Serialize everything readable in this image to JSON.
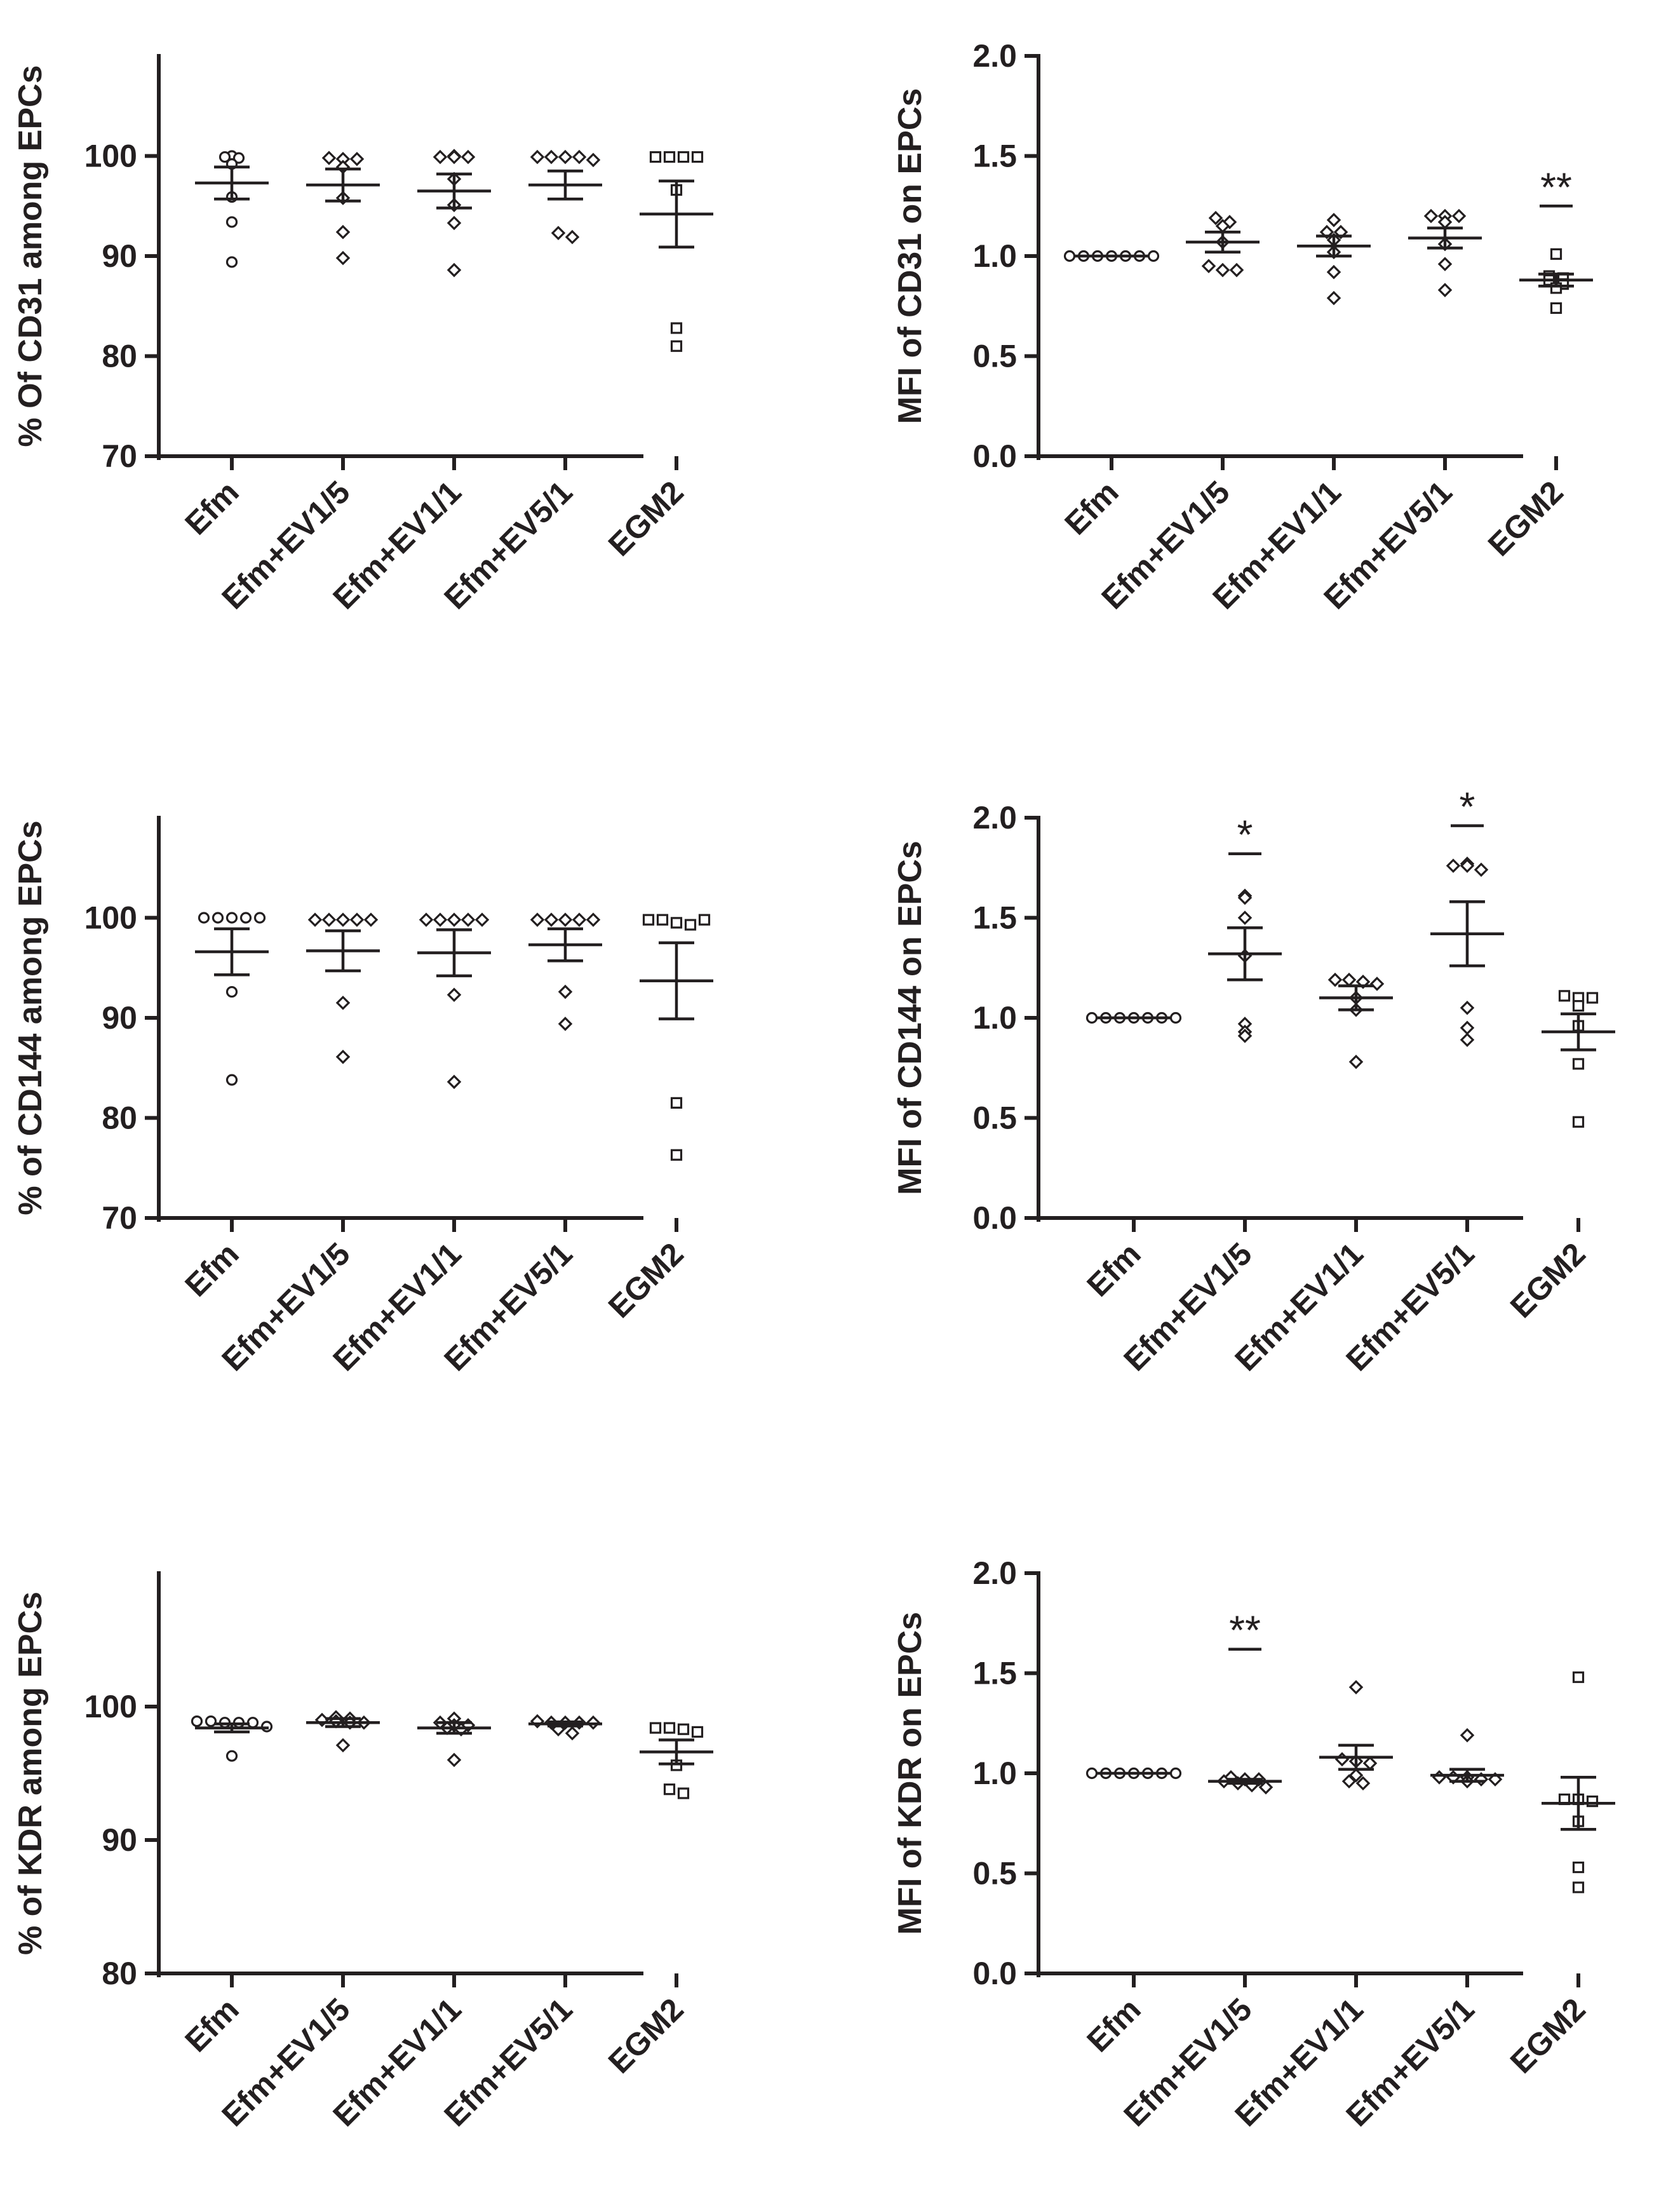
{
  "figure": {
    "panels": [
      {
        "id": "cd31-percent",
        "ylabel": "% Of CD31 among  EPCs"
      },
      {
        "id": "cd31-mfi",
        "ylabel": "MFI of CD31 on EPCs"
      },
      {
        "id": "cd144-percent",
        "ylabel": "% of CD144 among EPCs"
      },
      {
        "id": "cd144-mfi",
        "ylabel": "MFI of CD144 on EPCs"
      },
      {
        "id": "kdr-percent",
        "ylabel": "% of KDR among EPCs"
      },
      {
        "id": "kdr-mfi",
        "ylabel": "MFI of KDR on EPCs"
      }
    ]
  },
  "chart_data": [
    {
      "type": "scatter",
      "title": "",
      "xlabel": "",
      "ylabel": "% Of CD31 among  EPCs",
      "ylim": [
        70,
        110
      ],
      "ytick_values": [
        70,
        80,
        90,
        100
      ],
      "ytick_labels": [
        "70",
        "80",
        "90",
        "100"
      ],
      "categories": [
        "Efm",
        "Efm+EV1/5",
        "Efm+EV1/1",
        "Efm+EV5/1",
        "EGM2"
      ],
      "markers": [
        "circle",
        "diamond",
        "diamond",
        "diamond",
        "square"
      ],
      "points": [
        [
          100,
          99.9,
          99.8,
          99.2,
          95.9,
          93.4,
          89.4
        ],
        [
          99.8,
          99.7,
          99.7,
          98.9,
          95.8,
          92.4,
          89.8
        ],
        [
          100,
          99.9,
          99.9,
          99.9,
          97.7,
          95.1,
          93.3,
          88.6
        ],
        [
          99.9,
          99.9,
          99.9,
          99.9,
          99.6,
          92.3,
          91.9
        ],
        [
          99.9,
          99.9,
          99.9,
          99.9,
          96.6,
          82.8,
          81.0
        ]
      ],
      "mean": [
        97.3,
        97.1,
        96.5,
        97.1,
        94.2
      ],
      "sem": [
        1.6,
        1.6,
        1.7,
        1.4,
        3.3
      ],
      "significance": []
    },
    {
      "type": "scatter",
      "title": "",
      "xlabel": "",
      "ylabel": "MFI of CD31 on EPCs",
      "ylim": [
        0,
        2.0
      ],
      "ytick_values": [
        0,
        0.5,
        1.0,
        1.5,
        2.0
      ],
      "ytick_labels": [
        "0.0",
        "0.5",
        "1.0",
        "1.5",
        "2.0"
      ],
      "categories": [
        "Efm",
        "Efm+EV1/5",
        "Efm+EV1/1",
        "Efm+EV5/1",
        "EGM2"
      ],
      "markers": [
        "circle",
        "diamond",
        "diamond",
        "diamond",
        "square"
      ],
      "points": [
        [
          1.0,
          1.0,
          1.0,
          1.0,
          1.0,
          1.0,
          1.0
        ],
        [
          1.19,
          1.17,
          1.15,
          1.07,
          0.95,
          0.93,
          0.93
        ],
        [
          1.18,
          1.12,
          1.12,
          1.08,
          1.02,
          0.92,
          0.79
        ],
        [
          1.2,
          1.2,
          1.2,
          1.17,
          1.06,
          0.96,
          0.83
        ],
        [
          1.01,
          0.9,
          0.89,
          0.88,
          0.86,
          0.84,
          0.74
        ]
      ],
      "mean": [
        1.0,
        1.07,
        1.05,
        1.09,
        0.88
      ],
      "sem": [
        0.0,
        0.05,
        0.05,
        0.05,
        0.03
      ],
      "significance": [
        {
          "category": "EGM2",
          "label": "**",
          "y": 1.25
        }
      ]
    },
    {
      "type": "scatter",
      "title": "",
      "xlabel": "",
      "ylabel": "% of CD144 among EPCs",
      "ylim": [
        70,
        110
      ],
      "ytick_values": [
        70,
        80,
        90,
        100
      ],
      "ytick_labels": [
        "70",
        "80",
        "90",
        "100"
      ],
      "categories": [
        "Efm",
        "Efm+EV1/5",
        "Efm+EV1/1",
        "Efm+EV5/1",
        "EGM2"
      ],
      "markers": [
        "circle",
        "diamond",
        "diamond",
        "diamond",
        "square"
      ],
      "points": [
        [
          100,
          100,
          100,
          100,
          100,
          92.6,
          83.8
        ],
        [
          99.8,
          99.8,
          99.8,
          99.8,
          99.8,
          91.5,
          86.1
        ],
        [
          99.8,
          99.8,
          99.8,
          99.8,
          99.8,
          92.3,
          83.6
        ],
        [
          99.8,
          99.8,
          99.8,
          99.8,
          99.8,
          92.6,
          89.4
        ],
        [
          99.8,
          99.8,
          99.5,
          99.3,
          99.8,
          81.5,
          76.3
        ]
      ],
      "mean": [
        96.6,
        96.7,
        96.5,
        97.3,
        93.7
      ],
      "sem": [
        2.3,
        2.0,
        2.3,
        1.6,
        3.8
      ],
      "significance": []
    },
    {
      "type": "scatter",
      "title": "",
      "xlabel": "",
      "ylabel": "MFI of CD144 on EPCs",
      "ylim": [
        0,
        2.0
      ],
      "ytick_values": [
        0,
        0.5,
        1.0,
        1.5,
        2.0
      ],
      "ytick_labels": [
        "0.0",
        "0.5",
        "1.0",
        "1.5",
        "2.0"
      ],
      "categories": [
        "Efm",
        "Efm+EV1/5",
        "Efm+EV1/1",
        "Efm+EV5/1",
        "EGM2"
      ],
      "markers": [
        "circle",
        "diamond",
        "diamond",
        "diamond",
        "square"
      ],
      "points": [
        [
          1.0,
          1.0,
          1.0,
          1.0,
          1.0,
          1.0,
          1.0
        ],
        [
          1.61,
          1.6,
          1.5,
          1.31,
          0.97,
          0.93,
          0.91
        ],
        [
          1.19,
          1.19,
          1.18,
          1.17,
          1.1,
          1.04,
          0.78
        ],
        [
          1.77,
          1.76,
          1.76,
          1.74,
          1.05,
          0.95,
          0.89
        ],
        [
          1.11,
          1.1,
          1.1,
          1.06,
          0.96,
          0.77,
          0.48
        ]
      ],
      "mean": [
        1.0,
        1.32,
        1.1,
        1.42,
        0.93
      ],
      "sem": [
        0.0,
        0.13,
        0.06,
        0.16,
        0.09
      ],
      "significance": [
        {
          "category": "Efm+EV1/5",
          "label": "*",
          "y": 1.82
        },
        {
          "category": "Efm+EV5/1",
          "label": "*",
          "y": 1.96
        }
      ]
    },
    {
      "type": "scatter",
      "title": "",
      "xlabel": "",
      "ylabel": "% of KDR among EPCs",
      "ylim": [
        80,
        110
      ],
      "ytick_values": [
        80,
        90,
        100
      ],
      "ytick_labels": [
        "80",
        "90",
        "100"
      ],
      "categories": [
        "Efm",
        "Efm+EV1/5",
        "Efm+EV1/1",
        "Efm+EV5/1",
        "EGM2"
      ],
      "markers": [
        "circle",
        "diamond",
        "diamond",
        "diamond",
        "square"
      ],
      "points": [
        [
          98.9,
          98.9,
          98.8,
          98.8,
          98.8,
          98.5,
          96.3
        ],
        [
          99.2,
          99.1,
          99.0,
          98.9,
          98.8,
          98.8,
          97.1
        ],
        [
          99.1,
          98.8,
          98.6,
          98.6,
          98.4,
          98.3,
          96.0
        ],
        [
          98.9,
          98.8,
          98.8,
          98.8,
          98.8,
          98.3,
          98.0
        ],
        [
          98.4,
          98.4,
          98.3,
          98.1,
          95.6,
          93.8,
          93.5
        ]
      ],
      "mean": [
        98.4,
        98.8,
        98.4,
        98.7,
        96.6
      ],
      "sem": [
        0.3,
        0.3,
        0.4,
        0.15,
        0.9
      ],
      "significance": []
    },
    {
      "type": "scatter",
      "title": "",
      "xlabel": "",
      "ylabel": "MFI of KDR on EPCs",
      "ylim": [
        0,
        2.0
      ],
      "ytick_values": [
        0,
        0.5,
        1.0,
        1.5,
        2.0
      ],
      "ytick_labels": [
        "0.0",
        "0.5",
        "1.0",
        "1.5",
        "2.0"
      ],
      "categories": [
        "Efm",
        "Efm+EV1/5",
        "Efm+EV1/1",
        "Efm+EV5/1",
        "EGM2"
      ],
      "markers": [
        "circle",
        "diamond",
        "diamond",
        "diamond",
        "square"
      ],
      "points": [
        [
          1.0,
          1.0,
          1.0,
          1.0,
          1.0,
          1.0,
          1.0
        ],
        [
          0.98,
          0.97,
          0.97,
          0.96,
          0.95,
          0.94,
          0.93
        ],
        [
          1.43,
          1.07,
          1.06,
          1.05,
          0.99,
          0.96,
          0.95
        ],
        [
          1.19,
          0.98,
          0.98,
          0.98,
          0.97,
          0.97,
          0.96
        ],
        [
          1.48,
          0.87,
          0.87,
          0.86,
          0.76,
          0.53,
          0.43
        ]
      ],
      "mean": [
        1.0,
        0.96,
        1.08,
        0.99,
        0.85
      ],
      "sem": [
        0.0,
        0.01,
        0.06,
        0.03,
        0.13
      ],
      "significance": [
        {
          "category": "Efm+EV1/5",
          "label": "**",
          "y": 1.62
        }
      ]
    }
  ]
}
